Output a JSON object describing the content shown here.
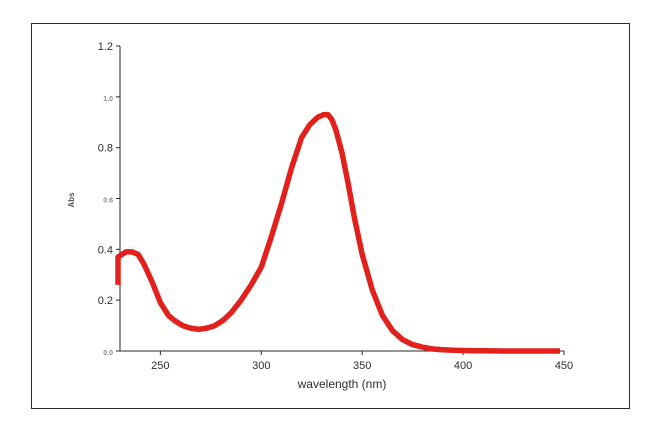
{
  "chart_data": {
    "type": "line",
    "title": "",
    "xlabel": "wavelength (nm)",
    "ylabel": "Abs",
    "xlim": [
      230,
      450
    ],
    "ylim": [
      0.0,
      1.2
    ],
    "xticks": [
      250,
      300,
      350,
      400,
      450
    ],
    "yticks": [
      {
        "value": 0.0,
        "label": "0.0",
        "faint": true
      },
      {
        "value": 0.2,
        "label": "0.2",
        "faint": false
      },
      {
        "value": 0.4,
        "label": "0.4",
        "faint": false
      },
      {
        "value": 0.6,
        "label": "0.6",
        "faint": true
      },
      {
        "value": 0.8,
        "label": "0.8",
        "faint": false
      },
      {
        "value": 1.0,
        "label": "1.0",
        "faint": true
      },
      {
        "value": 1.2,
        "label": "1.2",
        "faint": false
      }
    ],
    "grid": false,
    "legend": "none",
    "series": [
      {
        "color": "#e3211c",
        "x": [
          229,
          229,
          231,
          233,
          236,
          239,
          242,
          246,
          250,
          254,
          257,
          261,
          265,
          269,
          273,
          277,
          281,
          285,
          290,
          295,
          300,
          305,
          310,
          315,
          320,
          324,
          328,
          331,
          333,
          335,
          337,
          340,
          343,
          346,
          350,
          355,
          360,
          365,
          370,
          375,
          380,
          385,
          390,
          395,
          400,
          405,
          410,
          420,
          430,
          440,
          448
        ],
        "y": [
          0.26,
          0.37,
          0.38,
          0.39,
          0.39,
          0.38,
          0.34,
          0.27,
          0.19,
          0.14,
          0.12,
          0.1,
          0.09,
          0.085,
          0.09,
          0.1,
          0.12,
          0.15,
          0.2,
          0.26,
          0.33,
          0.45,
          0.58,
          0.72,
          0.84,
          0.89,
          0.92,
          0.93,
          0.93,
          0.91,
          0.87,
          0.78,
          0.66,
          0.53,
          0.38,
          0.24,
          0.14,
          0.08,
          0.045,
          0.025,
          0.015,
          0.008,
          0.005,
          0.003,
          0.002,
          0.001,
          0.001,
          0.0,
          0.0,
          0.0,
          0.0
        ]
      }
    ]
  }
}
